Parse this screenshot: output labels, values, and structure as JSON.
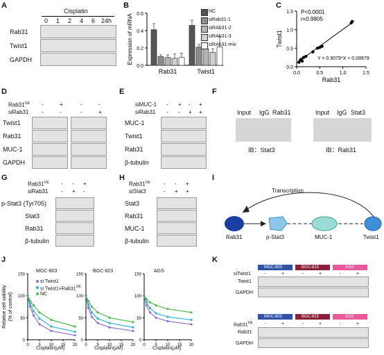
{
  "panels": {
    "A": {
      "label": "A",
      "treatment": "Cisplatin",
      "timepoints": [
        "0",
        "1",
        "2",
        "4",
        "6",
        "24h"
      ],
      "rows": [
        "Rab31",
        "Twist1",
        "GAPDH"
      ]
    },
    "B": {
      "label": "B",
      "ylabel": "Expression of mRNA",
      "groups": [
        "Rab31",
        "Twist1"
      ],
      "legend": [
        "NC",
        "siRab31-1",
        "siRAb31-2",
        "siRAb31-3",
        "siRAb31-mix"
      ],
      "legend_colors": [
        "#555555",
        "#8c8c8c",
        "#b4b4b4",
        "#d0d0d0",
        "#ffffff"
      ],
      "yticks": [
        "0.0",
        "0.2",
        "0.4",
        "0.6"
      ]
    },
    "C": {
      "label": "C",
      "stats": [
        "P<0.0001",
        "r=0.9805"
      ],
      "equation": "Y = 0.9079*X + 0.09979",
      "xlabel": "Rab31",
      "ylabel": "Twist1",
      "xticks": [
        "0.0",
        "0.5",
        "1.0",
        "1.5"
      ],
      "yticks": [
        "0.0",
        "0.5",
        "1.0",
        "1.5"
      ]
    },
    "D": {
      "label": "D",
      "cond1": "Rab31",
      "cond1_sup": "OE",
      "cond2": "siRab31",
      "row1": [
        "-",
        "+",
        "-",
        "-"
      ],
      "row2": [
        "-",
        "-",
        "-",
        "+"
      ],
      "rows": [
        "Twist1",
        "Rab31",
        "MUC-1",
        "GAPDH"
      ]
    },
    "E": {
      "label": "E",
      "cond1": "siMUC-1",
      "cond2": "siRab31",
      "row1": [
        "-",
        "+",
        "-",
        "+"
      ],
      "row2": [
        "-",
        "-",
        "+",
        "+"
      ],
      "rows": [
        "MUC-1",
        "Twist1",
        "Rab31",
        "β-tubulin"
      ]
    },
    "F": {
      "label": "F",
      "left_lanes": [
        "Input",
        "IgG",
        "Rab31"
      ],
      "left_ib": "IB：Stat3",
      "right_lanes": [
        "Input",
        "IgG",
        "Stat3"
      ],
      "right_ib": "IB：Rab31"
    },
    "G": {
      "label": "G",
      "cond1": "Rab31",
      "cond1_sup": "OE",
      "cond2": "siRab31",
      "row1": [
        "-",
        "-",
        "+"
      ],
      "row2": [
        "-",
        "+",
        "-"
      ],
      "rows": [
        "p-Stat3 (Tyr705)",
        "Stat3",
        "Rab31",
        "β-tubulin"
      ]
    },
    "H": {
      "label": "H",
      "cond1": "Rab31",
      "cond1_sup": "OE",
      "cond2": "siStat3",
      "row1": [
        "-",
        "-",
        "+"
      ],
      "row2": [
        "-",
        "+",
        "+"
      ],
      "rows": [
        "Stat3",
        "Rab31",
        "MUC-1",
        "β-tubulin"
      ]
    },
    "I": {
      "label": "I",
      "transcription": "Transcription",
      "nodes": [
        "Rab31",
        "p-Stat3",
        "MUC-1",
        "Twist1"
      ]
    },
    "J": {
      "label": "J",
      "ylabel": "Relative cell viability",
      "ylabel2": "(% of control)",
      "xlabel": "Cisplatin(μM)",
      "titles": [
        "MGC-803",
        "BGC-823",
        "AGS"
      ],
      "legend": [
        "si Twist1",
        "si Twist1+Rab31",
        "NC"
      ],
      "legend_sup": "OE",
      "legend_colors": [
        "#8e6fd0",
        "#2fb6d6",
        "#4fb84a"
      ],
      "yticks": [
        "0",
        "50",
        "100",
        "150"
      ],
      "xticks": [
        "0",
        "5",
        "10",
        "15",
        "20"
      ]
    },
    "K": {
      "label": "K",
      "cells": [
        "MGC-803",
        "BGC-823",
        "AGS"
      ],
      "cell_colors": [
        "#2f52a8",
        "#8a1f3a",
        "#e85a9a"
      ],
      "top_cond": "siTwist1",
      "top_signs": [
        "-",
        "+",
        "-",
        "+",
        "-",
        "+"
      ],
      "top_rows": [
        "Twist1",
        "GAPDH"
      ],
      "bottom_cond": "Rab31",
      "bottom_cond_sup": "OE",
      "bottom_signs": [
        "-",
        "+",
        "-",
        "+",
        "-",
        "+"
      ],
      "bottom_rows": [
        "Rab31",
        "GAPDH"
      ]
    }
  },
  "chart_data": [
    {
      "type": "bar",
      "panel": "B",
      "categories": [
        "Rab31",
        "Twist1"
      ],
      "ylabel": "Expression of mRNA",
      "ylim": [
        0,
        0.6
      ],
      "series": [
        {
          "name": "NC",
          "values": [
            0.41,
            0.46
          ]
        },
        {
          "name": "siRab31-1",
          "values": [
            0.1,
            0.21
          ]
        },
        {
          "name": "siRAb31-2",
          "values": [
            0.09,
            0.19
          ]
        },
        {
          "name": "siRAb31-3",
          "values": [
            0.08,
            0.15
          ]
        },
        {
          "name": "siRAb31-mix",
          "values": [
            0.09,
            0.21
          ]
        }
      ],
      "errors": [
        [
          0.07,
          0.02,
          0.03,
          0.05,
          0.05
        ],
        [
          0.06,
          0.03,
          0.05,
          0.04,
          0.12
        ]
      ]
    },
    {
      "type": "scatter",
      "panel": "C",
      "xlabel": "Rab31",
      "ylabel": "Twist1",
      "xlim": [
        0,
        1.5
      ],
      "ylim": [
        0,
        1.5
      ],
      "x": [
        0.05,
        0.08,
        0.1,
        0.12,
        0.15,
        0.2,
        0.35,
        0.45,
        0.5,
        0.55,
        1.18,
        1.2
      ],
      "y": [
        0.12,
        0.18,
        0.2,
        0.15,
        0.25,
        0.28,
        0.4,
        0.5,
        0.52,
        0.55,
        1.18,
        1.22
      ],
      "fit": {
        "slope": 0.9079,
        "intercept": 0.09979
      }
    },
    {
      "type": "line",
      "panel": "J",
      "xlabel": "Cisplatin(μM)",
      "ylim": [
        0,
        150
      ],
      "x": [
        0,
        1,
        2.5,
        5,
        10,
        20
      ],
      "charts": [
        {
          "title": "MGC-803",
          "series": [
            {
              "name": "si Twist1",
              "values": [
                100,
                75,
                55,
                35,
                20,
                10
              ]
            },
            {
              "name": "si Twist1+Rab31OE",
              "values": [
                100,
                82,
                65,
                48,
                30,
                18
              ]
            },
            {
              "name": "NC",
              "values": [
                100,
                88,
                78,
                62,
                45,
                30
              ]
            }
          ]
        },
        {
          "title": "BGC-823",
          "series": [
            {
              "name": "si Twist1",
              "values": [
                100,
                72,
                52,
                38,
                28,
                20
              ]
            },
            {
              "name": "si Twist1+Rab31OE",
              "values": [
                100,
                80,
                62,
                48,
                38,
                28
              ]
            },
            {
              "name": "NC",
              "values": [
                100,
                88,
                75,
                62,
                50,
                40
              ]
            }
          ]
        },
        {
          "title": "AGS",
          "series": [
            {
              "name": "si Twist1",
              "values": [
                100,
                78,
                62,
                50,
                42,
                35
              ]
            },
            {
              "name": "si Twist1+Rab31OE",
              "values": [
                100,
                85,
                72,
                60,
                52,
                45
              ]
            },
            {
              "name": "NC",
              "values": [
                100,
                92,
                85,
                78,
                70,
                62
              ]
            }
          ]
        }
      ]
    }
  ]
}
